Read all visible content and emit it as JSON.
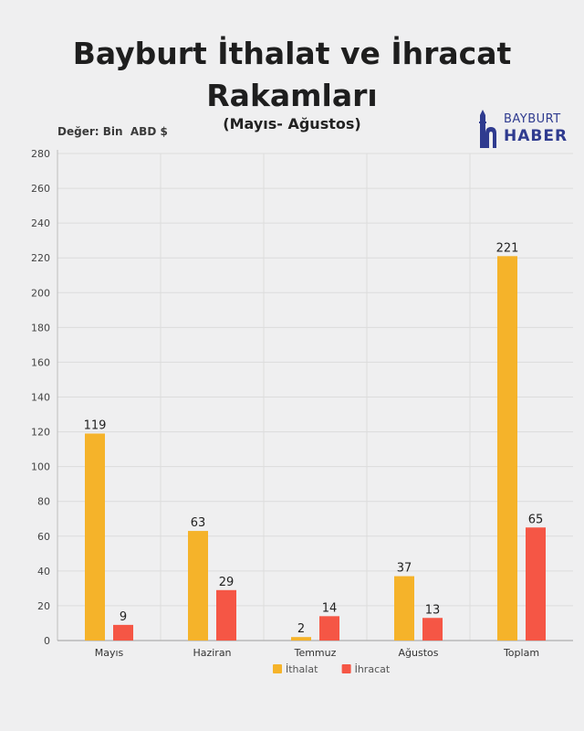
{
  "title_lines": [
    "Bayburt İthalat ve İhracat",
    "Rakamları"
  ],
  "subtitle": "(Mayıs- Ağustos)",
  "unit_label": "Değer: Bin  ABD $",
  "logo": {
    "top": "BAYBURT",
    "bottom": "HABER",
    "color": "#2f3b8f"
  },
  "chart_data": {
    "type": "bar",
    "categories": [
      "Mayıs",
      "Haziran",
      "Temmuz",
      "Ağustos",
      "Toplam"
    ],
    "series": [
      {
        "name": "İthalat",
        "values": [
          119,
          63,
          2,
          37,
          221
        ],
        "color": "#f5b32a"
      },
      {
        "name": "İhracat",
        "values": [
          9,
          29,
          14,
          13,
          65
        ],
        "color": "#f55645"
      }
    ],
    "ylim": [
      0,
      280
    ],
    "yticks": [
      0,
      20,
      40,
      60,
      80,
      100,
      120,
      140,
      160,
      180,
      200,
      220,
      240,
      260,
      280
    ],
    "grid": true,
    "legend_position": "bottom"
  }
}
